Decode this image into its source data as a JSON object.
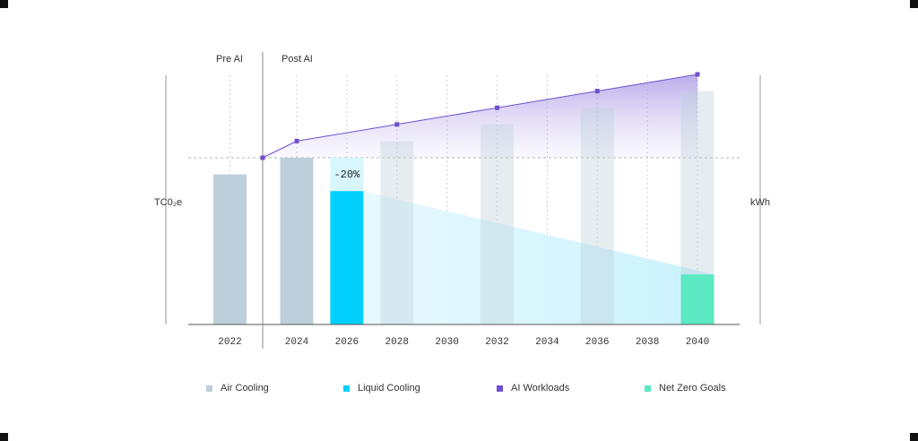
{
  "chart_data": {
    "type": "bar",
    "ylabel_left": "TC0₂e",
    "ylabel_right": "kWh",
    "period_labels": {
      "pre": "Pre AI",
      "post": "Post AI"
    },
    "x_ticks": [
      "2022",
      "2024",
      "2026",
      "2028",
      "2030",
      "2032",
      "2034",
      "2036",
      "2038",
      "2040"
    ],
    "series": [
      {
        "name": "Air Cooling",
        "color": "#bccfda",
        "points": [
          {
            "year": "2022",
            "value": 0.9,
            "style": "solid"
          },
          {
            "year": "2024",
            "value": 1.0,
            "style": "solid"
          },
          {
            "year": "2028",
            "value": 1.1,
            "style": "faded"
          },
          {
            "year": "2032",
            "value": 1.2,
            "style": "faded"
          },
          {
            "year": "2036",
            "value": 1.3,
            "style": "faded"
          },
          {
            "year": "2040",
            "value": 1.4,
            "style": "faded"
          }
        ]
      },
      {
        "name": "Liquid Cooling",
        "color": "#00d0fb",
        "points": [
          {
            "year": "2026",
            "value": 0.8
          }
        ],
        "projection_area": {
          "from": [
            "2026",
            0.8
          ],
          "to": [
            "2040",
            0.3
          ]
        }
      },
      {
        "name": "AI Workloads",
        "color": "#6e4fcf",
        "points": [
          {
            "x": 2023,
            "value": 1.0
          },
          {
            "x": 2024,
            "value": 1.1
          },
          {
            "x": 2028,
            "value": 1.2
          },
          {
            "x": 2032,
            "value": 1.3
          },
          {
            "x": 2036,
            "value": 1.4
          },
          {
            "x": 2040,
            "value": 1.5
          }
        ]
      },
      {
        "name": "Net Zero Goals",
        "color": "#5ce8c0",
        "points": [
          {
            "year": "2040",
            "value": 0.3
          }
        ]
      }
    ],
    "annotations": [
      {
        "year": "2026",
        "text": "-20%"
      }
    ],
    "reference_line": 1.0,
    "ylim": [
      0,
      1.5
    ],
    "grid": "vertical dotted",
    "legend_position": "bottom"
  },
  "legend": [
    {
      "label": "Air Cooling",
      "color": "#bccfda"
    },
    {
      "label": "Liquid Cooling",
      "color": "#00d0fb"
    },
    {
      "label": "AI Workloads",
      "color": "#6e4fcf"
    },
    {
      "label": "Net Zero Goals",
      "color": "#5ce8c0"
    }
  ]
}
